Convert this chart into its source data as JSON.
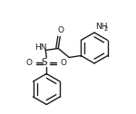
{
  "bg_color": "#ffffff",
  "line_color": "#1a1a1a",
  "line_width": 1.0,
  "font_size": 6.5,
  "sub_font_size": 5.0,
  "fig_width": 1.5,
  "fig_height": 1.26,
  "dpi": 100,
  "xlim": [
    0,
    150
  ],
  "ylim": [
    0,
    126
  ]
}
